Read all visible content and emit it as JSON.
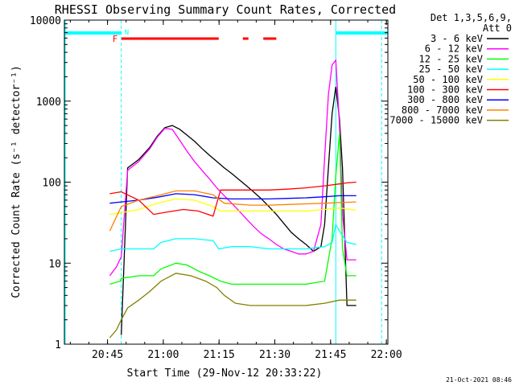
{
  "chart_data": {
    "type": "line",
    "title": "RHESSI Observing Summary Count Rates, Corrected",
    "xlabel": "Start Time (29-Nov-12 20:33:22)",
    "ylabel": "Corrected Count Rate (s⁻¹ detector⁻¹)",
    "x_unit": "minutes after 20:33:22",
    "xlim": [
      0,
      87
    ],
    "ylim": [
      1,
      10000
    ],
    "yscale": "log",
    "x_ticks": [
      {
        "label": "20:45",
        "value": 11.6
      },
      {
        "label": "21:00",
        "value": 26.6
      },
      {
        "label": "21:15",
        "value": 41.6
      },
      {
        "label": "21:30",
        "value": 56.6
      },
      {
        "label": "21:45",
        "value": 71.6
      },
      {
        "label": "22:00",
        "value": 86.6
      }
    ],
    "y_ticks": [
      {
        "label": "1",
        "value": 1
      },
      {
        "label": "10",
        "value": 10
      },
      {
        "label": "100",
        "value": 100
      },
      {
        "label": "1000",
        "value": 1000
      },
      {
        "label": "10000",
        "value": 10000
      }
    ],
    "legend": {
      "position": "top-right",
      "header": [
        "Det 1,3,5,6,9,",
        "Att 0"
      ]
    },
    "series": [
      {
        "name": "3 - 6 keV",
        "color": "#000000",
        "x": [
          15.3,
          17,
          20,
          23,
          25,
          27,
          29,
          31,
          33,
          35,
          37,
          39,
          41,
          43,
          45,
          47,
          49,
          51,
          53,
          55,
          57,
          59,
          61,
          63,
          65,
          67,
          69,
          70,
          71,
          72,
          73,
          74,
          74.8,
          76,
          78.5
        ],
        "y": [
          1.3,
          150,
          190,
          270,
          370,
          470,
          500,
          450,
          380,
          320,
          260,
          215,
          180,
          150,
          128,
          107,
          90,
          75,
          62,
          50,
          40,
          31,
          24,
          20,
          17,
          14,
          16,
          30,
          150,
          700,
          1500,
          600,
          150,
          3,
          3
        ]
      },
      {
        "name": "6 - 12 keV",
        "color": "#ff00ff",
        "x": [
          12.2,
          14,
          15.3,
          17,
          20,
          23,
          25,
          27,
          29,
          31,
          33,
          35,
          37,
          39,
          41,
          43,
          45,
          47,
          49,
          51,
          53,
          55,
          57,
          59,
          61,
          63,
          65,
          67,
          69,
          70,
          71,
          72,
          73,
          74,
          74.8,
          76,
          78.5
        ],
        "y": [
          7,
          9,
          12,
          140,
          180,
          260,
          360,
          460,
          450,
          330,
          240,
          180,
          140,
          110,
          85,
          68,
          55,
          44,
          35,
          28,
          23,
          20,
          17,
          15,
          14,
          13,
          13,
          14,
          30,
          200,
          1200,
          2800,
          3200,
          500,
          40,
          11,
          11
        ]
      },
      {
        "name": "12 - 25 keV",
        "color": "#00ff00",
        "x": [
          12.2,
          15,
          15.3,
          20,
          24,
          26,
          30,
          33,
          36,
          39,
          42,
          45,
          50,
          55,
          60,
          65,
          70,
          72,
          73,
          74,
          74.8,
          76,
          78.5
        ],
        "y": [
          5.5,
          6,
          6.5,
          7,
          7,
          8.5,
          10,
          9.5,
          8,
          7,
          6,
          5.5,
          5.5,
          5.5,
          5.5,
          5.5,
          6,
          20,
          120,
          400,
          15,
          7,
          7
        ]
      },
      {
        "name": "25 - 50 keV",
        "color": "#00ffff",
        "x": [
          12.2,
          15.3,
          20,
          24,
          26,
          30,
          35,
          40,
          41.5,
          45,
          50,
          55,
          60,
          65,
          70,
          72,
          73,
          74,
          76,
          78.5
        ],
        "y": [
          14,
          15,
          15,
          15,
          18,
          20,
          20,
          19,
          15,
          16,
          16,
          15,
          15,
          15,
          16,
          18,
          30,
          25,
          18,
          17
        ]
      },
      {
        "name": "50 - 100 keV",
        "color": "#ffff00",
        "x": [
          12.2,
          15.3,
          20,
          25,
          30,
          35,
          40,
          42,
          45,
          50,
          55,
          60,
          65,
          70,
          74,
          78.5
        ],
        "y": [
          40,
          42,
          46,
          55,
          62,
          60,
          50,
          44,
          44,
          44,
          44,
          44,
          44,
          46,
          48,
          45
        ]
      },
      {
        "name": "100 - 300 keV",
        "color": "#ff0000",
        "x": [
          12.2,
          15.3,
          20,
          24,
          28,
          32,
          36,
          40,
          42,
          45,
          50,
          55,
          60,
          65,
          70,
          74,
          76,
          78.5
        ],
        "y": [
          72,
          76,
          60,
          40,
          43,
          46,
          44,
          38,
          80,
          80,
          80,
          80,
          82,
          85,
          90,
          95,
          98,
          100
        ]
      },
      {
        "name": "300 - 800 keV",
        "color": "#0000ff",
        "x": [
          12.2,
          15.3,
          20,
          25,
          30,
          35,
          40,
          45,
          50,
          55,
          60,
          65,
          70,
          74,
          78.5
        ],
        "y": [
          55,
          57,
          60,
          65,
          72,
          70,
          64,
          62,
          62,
          62,
          63,
          64,
          66,
          68,
          68
        ]
      },
      {
        "name": "800 - 7000 keV",
        "color": "#ff8000",
        "x": [
          12.2,
          15.3,
          20,
          25,
          30,
          35,
          40,
          43,
          50,
          55,
          60,
          65,
          70,
          74,
          78.5
        ],
        "y": [
          25,
          50,
          60,
          68,
          78,
          78,
          70,
          55,
          52,
          52,
          53,
          54,
          55,
          56,
          57
        ]
      },
      {
        "name": "7000 - 15000 keV",
        "color": "#808000",
        "x": [
          12.2,
          14,
          15.3,
          17,
          20,
          23,
          26,
          30,
          34,
          38,
          41,
          43,
          46,
          50,
          55,
          60,
          65,
          70,
          74,
          76,
          78.5
        ],
        "y": [
          1.2,
          1.5,
          2,
          2.8,
          3.5,
          4.5,
          6,
          7.5,
          7,
          6,
          5,
          4,
          3.2,
          3,
          3,
          3,
          3,
          3.2,
          3.5,
          3.5,
          3.5
        ]
      }
    ],
    "annotations": {
      "night_bars": [
        [
          0,
          15.3
        ],
        [
          73,
          87
        ]
      ],
      "night_label": "N",
      "flare_bars": [
        [
          15.3,
          41.5
        ],
        [
          48,
          49.5
        ],
        [
          53.5,
          57
        ]
      ],
      "flare_label": "F",
      "boundaries": [
        15.3,
        73,
        85.3
      ]
    }
  },
  "colors": {
    "night": "#00ffff",
    "flare": "#ff0000",
    "axes": "#000000"
  },
  "footer": {
    "timestamp": "21-Oct-2021 08:46"
  }
}
